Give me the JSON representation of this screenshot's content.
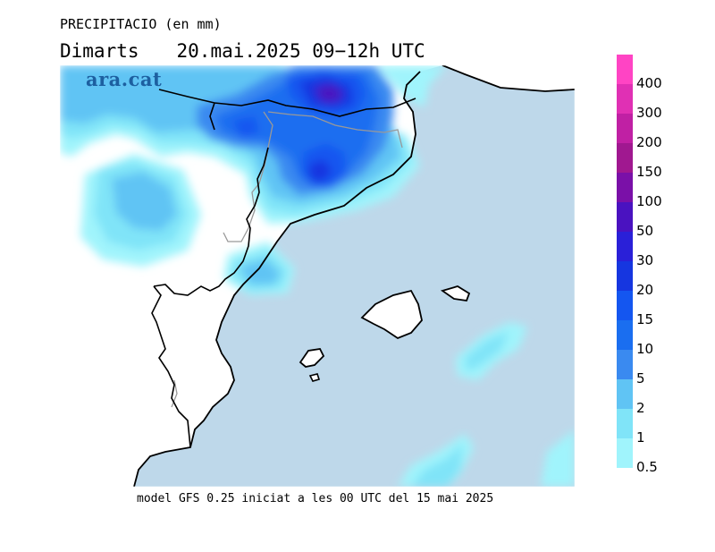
{
  "title": "PRECIPITACIO (en mm)",
  "day": "Dimarts",
  "period": "20.mai.2025 09−12h UTC",
  "footer": "model GFS 0.25 iniciat a les 00 UTC del 15 mai 2025",
  "logo": "ara.cat",
  "legend": {
    "labels": [
      "400",
      "300",
      "200",
      "150",
      "100",
      "50",
      "30",
      "20",
      "15",
      "10",
      "5",
      "2",
      "1",
      "0.5"
    ],
    "colors": [
      "#ff44c4",
      "#e030b4",
      "#c020a4",
      "#a01890",
      "#7a10a8",
      "#4a12c0",
      "#2a20d8",
      "#1636e0",
      "#1456f0",
      "#1a6ef0",
      "#3a8af0",
      "#60c4f4",
      "#80e4f8",
      "#a0f4fc"
    ]
  },
  "colors": {
    "sea": "#bed8ea",
    "land": "#ffffff",
    "coast": "#000000",
    "border": "#999999"
  }
}
